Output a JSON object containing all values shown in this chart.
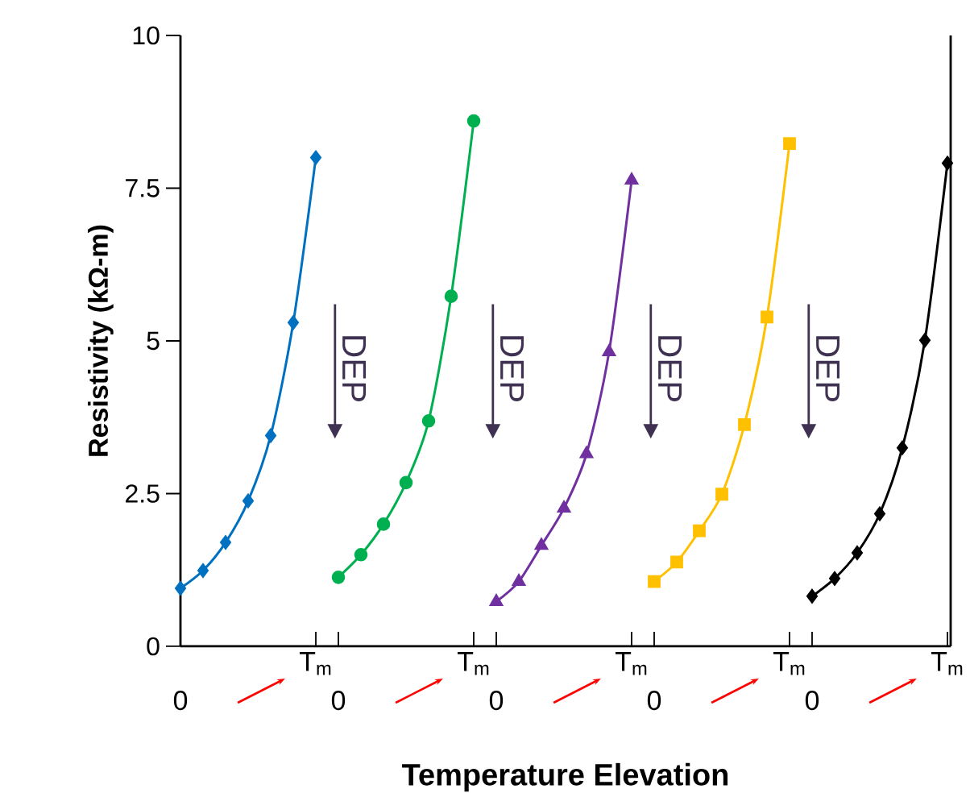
{
  "chart_data": {
    "type": "line",
    "xlabel": "Temperature Elevation",
    "ylabel": "Resistivity (kΩ-m)",
    "ylim": [
      0,
      10
    ],
    "yticks": [
      0,
      2.5,
      5,
      7.5,
      10
    ],
    "categories": [
      "0",
      null,
      null,
      null,
      null,
      null,
      "T$_{m}$",
      "0",
      null,
      null,
      null,
      null,
      null,
      "T$_{m}$",
      "0",
      null,
      null,
      null,
      null,
      null,
      "T$_{m}$",
      "0",
      null,
      null,
      null,
      null,
      null,
      "T$_{m}$",
      "0",
      null,
      null,
      null,
      null,
      null,
      "T$_{m}$"
    ],
    "series": [
      {
        "color": "#0070c0",
        "marker": "diamond",
        "values": [
          0.95,
          1.24,
          1.7,
          2.38,
          3.45,
          5.3,
          8.0,
          null,
          null,
          null,
          null,
          null,
          null,
          null,
          null,
          null,
          null,
          null,
          null,
          null,
          null,
          null,
          null,
          null,
          null,
          null,
          null,
          null,
          null,
          null,
          null,
          null,
          null,
          null,
          null
        ]
      },
      {
        "color": "#00b050",
        "marker": "circle",
        "values": [
          null,
          null,
          null,
          null,
          null,
          null,
          null,
          1.13,
          1.5,
          2.0,
          2.68,
          3.69,
          5.73,
          8.6,
          null,
          null,
          null,
          null,
          null,
          null,
          null,
          null,
          null,
          null,
          null,
          null,
          null,
          null,
          null,
          null,
          null,
          null,
          null,
          null,
          null
        ]
      },
      {
        "color": "#7030a0",
        "marker": "triangle",
        "values": [
          null,
          null,
          null,
          null,
          null,
          null,
          null,
          null,
          null,
          null,
          null,
          null,
          null,
          null,
          0.73,
          1.06,
          1.65,
          2.26,
          3.15,
          4.82,
          7.63,
          null,
          null,
          null,
          null,
          null,
          null,
          null,
          null,
          null,
          null,
          null,
          null,
          null,
          null
        ]
      },
      {
        "color": "#ffc000",
        "marker": "square",
        "values": [
          null,
          null,
          null,
          null,
          null,
          null,
          null,
          null,
          null,
          null,
          null,
          null,
          null,
          null,
          null,
          null,
          null,
          null,
          null,
          null,
          null,
          1.06,
          1.38,
          1.89,
          2.49,
          3.63,
          5.39,
          8.23,
          null,
          null,
          null,
          null,
          null,
          null,
          null
        ]
      },
      {
        "color": "#000000",
        "marker": "diamond",
        "values": [
          null,
          null,
          null,
          null,
          null,
          null,
          null,
          null,
          null,
          null,
          null,
          null,
          null,
          null,
          null,
          null,
          null,
          null,
          null,
          null,
          null,
          null,
          null,
          null,
          null,
          null,
          null,
          null,
          0.82,
          1.11,
          1.53,
          2.17,
          3.25,
          5.01,
          7.91
        ]
      }
    ],
    "annotations": [
      "DEP",
      "DEP",
      "DEP",
      "DEP"
    ]
  }
}
